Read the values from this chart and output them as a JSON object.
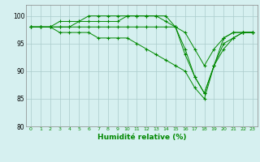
{
  "title": "",
  "xlabel": "Humidité relative (%)",
  "ylabel": "",
  "background_color": "#d6f0f0",
  "line_color": "#008800",
  "grid_color": "#aacccc",
  "ylim": [
    80,
    102
  ],
  "xlim": [
    -0.5,
    23.5
  ],
  "yticks": [
    80,
    85,
    90,
    95,
    100
  ],
  "xticks": [
    0,
    1,
    2,
    3,
    4,
    5,
    6,
    7,
    8,
    9,
    10,
    11,
    12,
    13,
    14,
    15,
    16,
    17,
    18,
    19,
    20,
    21,
    22,
    23
  ],
  "series": [
    [
      98,
      98,
      98,
      99,
      99,
      99,
      100,
      100,
      100,
      100,
      100,
      100,
      100,
      100,
      100,
      98,
      94,
      89,
      86,
      91,
      96,
      97,
      97,
      97
    ],
    [
      98,
      98,
      98,
      98,
      98,
      99,
      99,
      99,
      99,
      99,
      100,
      100,
      100,
      100,
      99,
      98,
      93,
      89,
      86,
      91,
      95,
      96,
      97,
      97
    ],
    [
      98,
      98,
      98,
      98,
      98,
      98,
      98,
      98,
      98,
      98,
      98,
      98,
      98,
      98,
      98,
      98,
      97,
      94,
      91,
      94,
      96,
      97,
      97,
      97
    ],
    [
      98,
      98,
      98,
      97,
      97,
      97,
      97,
      96,
      96,
      96,
      96,
      95,
      94,
      93,
      92,
      91,
      90,
      87,
      85,
      91,
      94,
      96,
      97,
      97
    ]
  ]
}
